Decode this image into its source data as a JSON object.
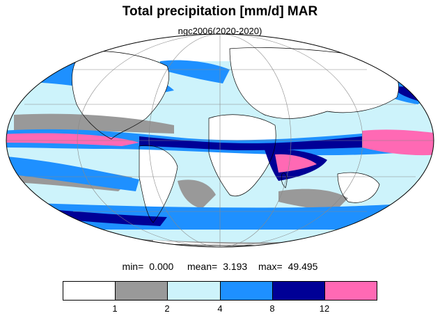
{
  "header": {
    "title": "Total precipitation [mm/d] MAR",
    "subtitle": "ngc2006(2020-2020)"
  },
  "stats": {
    "min_label": "min=",
    "min_value": "0.000",
    "mean_label": "mean=",
    "mean_value": "3.193",
    "max_label": "max=",
    "max_value": "49.495"
  },
  "colorbar": {
    "colors": [
      "#ffffff",
      "#999999",
      "#cdf3fb",
      "#1e90ff",
      "#000096",
      "#ff69b4"
    ],
    "ticks": [
      "1",
      "2",
      "4",
      "8",
      "12"
    ]
  },
  "map": {
    "projection": "mollweide",
    "ocean_default": "#cdf3fb",
    "coastline_color": "#000000",
    "grid_color": "#888888"
  }
}
